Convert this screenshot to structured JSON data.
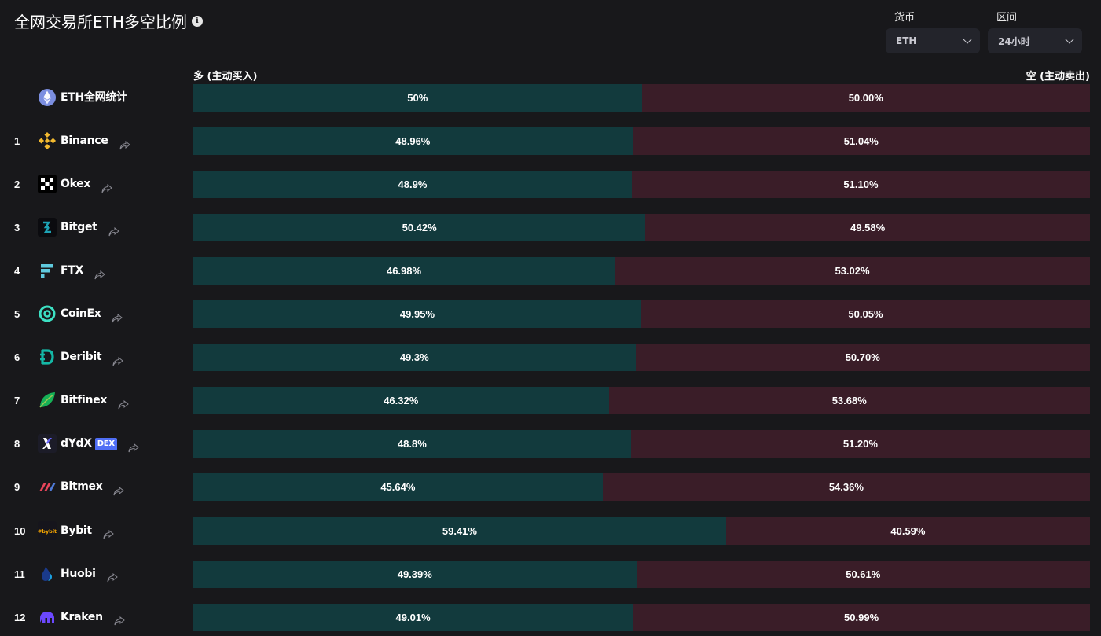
{
  "title": "全网交易所ETH多空比例",
  "filters": {
    "currency_label": "货币",
    "currency_value": "ETH",
    "interval_label": "区间",
    "interval_value": "24小时"
  },
  "headers": {
    "long": "多 (主动买入)",
    "short": "空 (主动卖出)"
  },
  "colors": {
    "long_bar": "#123a3d",
    "short_bar": "#3a1d28",
    "background": "#18181b"
  },
  "rows": [
    {
      "rank": "",
      "name": "ETH全网统计",
      "icon": "eth-icon",
      "long": 50,
      "long_label": "50%",
      "short_label": "50.00%",
      "share": false,
      "dex": ""
    },
    {
      "rank": "1",
      "name": "Binance",
      "icon": "binance-icon",
      "long": 48.96,
      "long_label": "48.96%",
      "short_label": "51.04%",
      "share": true,
      "dex": ""
    },
    {
      "rank": "2",
      "name": "Okex",
      "icon": "okex-icon",
      "long": 48.9,
      "long_label": "48.9%",
      "short_label": "51.10%",
      "share": true,
      "dex": ""
    },
    {
      "rank": "3",
      "name": "Bitget",
      "icon": "bitget-icon",
      "long": 50.42,
      "long_label": "50.42%",
      "short_label": "49.58%",
      "share": true,
      "dex": ""
    },
    {
      "rank": "4",
      "name": "FTX",
      "icon": "ftx-icon",
      "long": 46.98,
      "long_label": "46.98%",
      "short_label": "53.02%",
      "share": true,
      "dex": ""
    },
    {
      "rank": "5",
      "name": "CoinEx",
      "icon": "coinex-icon",
      "long": 49.95,
      "long_label": "49.95%",
      "short_label": "50.05%",
      "share": true,
      "dex": ""
    },
    {
      "rank": "6",
      "name": "Deribit",
      "icon": "deribit-icon",
      "long": 49.3,
      "long_label": "49.3%",
      "short_label": "50.70%",
      "share": true,
      "dex": ""
    },
    {
      "rank": "7",
      "name": "Bitfinex",
      "icon": "bitfinex-icon",
      "long": 46.32,
      "long_label": "46.32%",
      "short_label": "53.68%",
      "share": true,
      "dex": ""
    },
    {
      "rank": "8",
      "name": "dYdX",
      "icon": "dydx-icon",
      "long": 48.8,
      "long_label": "48.8%",
      "short_label": "51.20%",
      "share": true,
      "dex": "DEX"
    },
    {
      "rank": "9",
      "name": "Bitmex",
      "icon": "bitmex-icon",
      "long": 45.64,
      "long_label": "45.64%",
      "short_label": "54.36%",
      "share": true,
      "dex": ""
    },
    {
      "rank": "10",
      "name": "Bybit",
      "icon": "bybit-icon",
      "long": 59.41,
      "long_label": "59.41%",
      "short_label": "40.59%",
      "share": true,
      "dex": ""
    },
    {
      "rank": "11",
      "name": "Huobi",
      "icon": "huobi-icon",
      "long": 49.39,
      "long_label": "49.39%",
      "short_label": "50.61%",
      "share": true,
      "dex": ""
    },
    {
      "rank": "12",
      "name": "Kraken",
      "icon": "kraken-icon",
      "long": 49.01,
      "long_label": "49.01%",
      "short_label": "50.99%",
      "share": true,
      "dex": ""
    }
  ]
}
